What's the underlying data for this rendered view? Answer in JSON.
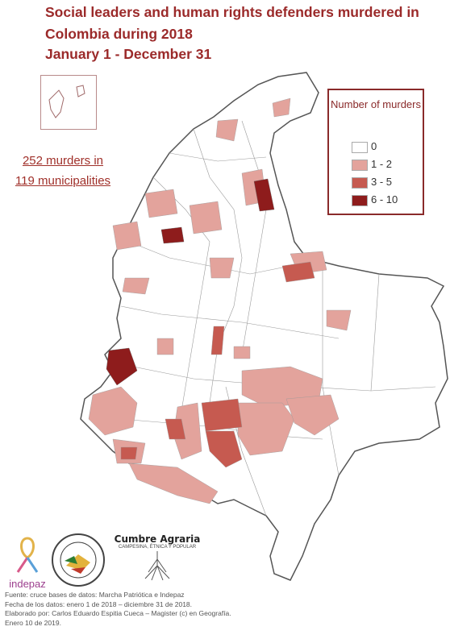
{
  "title": "Social leaders and human rights defenders murdered in Colombia during 2018",
  "subtitle": "January 1 - December 31",
  "summary": {
    "line1": "252 murders in",
    "line2": "119 municipalities"
  },
  "legend": {
    "title": "Number of murders",
    "items": [
      {
        "label": "0",
        "color": "#ffffff"
      },
      {
        "label": "1 - 2",
        "color": "#e3a39c"
      },
      {
        "label": "3 - 5",
        "color": "#c65a50"
      },
      {
        "label": "6 - 10",
        "color": "#8e1c1c"
      }
    ]
  },
  "logos": {
    "indepaz": "indepaz",
    "cumbre": "Cumbre Agraria",
    "cumbre_sub": "CAMPESINA, ÉTNICA Y POPULAR"
  },
  "footer": {
    "line1": "Fuente: cruce bases de datos: Marcha Patriótica  e Indepaz",
    "line2": "Fecha de los datos: enero 1 de 2018 – diciembre 31 de 2018.",
    "line3": "Elaborado por: Carlos Eduardo Espitia Cueca – Magister (c) en Geografía.",
    "line4": "Enero 10 de 2019."
  },
  "colors": {
    "title": "#9b2a2a",
    "class0": "#ffffff",
    "class1": "#e3a39c",
    "class2": "#c65a50",
    "class3": "#8e1c1c",
    "border": "#555555"
  }
}
